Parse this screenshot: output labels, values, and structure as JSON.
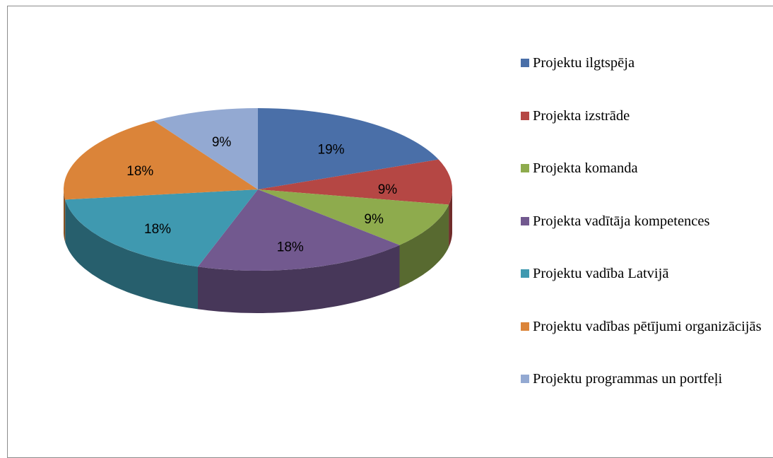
{
  "chart_data": {
    "type": "pie",
    "categories": [
      "Projektu ilgtspēja",
      "Projekta izstrāde",
      "Projekta komanda",
      "Projekta vadītāja kompetences",
      "Projektu vadība Latvijā",
      "Projektu vadības pētījumi organizācijās",
      "Projektu programmas un portfeļi"
    ],
    "values": [
      19,
      9,
      9,
      18,
      18,
      18,
      9
    ],
    "value_labels": [
      "19%",
      "9%",
      "9%",
      "18%",
      "18%",
      "18%",
      "9%"
    ],
    "colors": [
      "#4a6fa8",
      "#b54744",
      "#8eab4d",
      "#72598f",
      "#3f99b0",
      "#db8439",
      "#93a9d2"
    ],
    "legend": "right"
  }
}
